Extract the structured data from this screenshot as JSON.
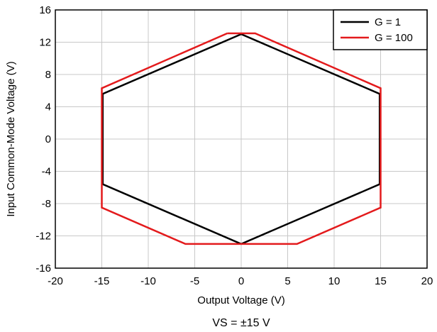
{
  "chart_data": {
    "type": "line",
    "title": "",
    "xlabel": "Output Voltage (V)",
    "ylabel": "Input Common-Mode Voltage (V)",
    "caption": "VS = ±15 V",
    "xlim": [
      -20,
      20
    ],
    "ylim": [
      -16,
      16
    ],
    "xticks": [
      -20,
      -15,
      -10,
      -5,
      0,
      5,
      10,
      15,
      20
    ],
    "yticks": [
      -16,
      -12,
      -8,
      -4,
      0,
      4,
      8,
      12,
      16
    ],
    "grid": true,
    "legend_position": "top-right",
    "series": [
      {
        "name": "G = 1",
        "color": "#000000",
        "points": [
          [
            0,
            13
          ],
          [
            14.9,
            5.6
          ],
          [
            14.9,
            -5.6
          ],
          [
            0,
            -13
          ],
          [
            -14.9,
            -5.6
          ],
          [
            -14.9,
            5.6
          ],
          [
            0,
            13
          ]
        ]
      },
      {
        "name": "G = 100",
        "color": "#e31a1c",
        "points": [
          [
            -1.5,
            13.1
          ],
          [
            1.5,
            13.1
          ],
          [
            15,
            6.3
          ],
          [
            15,
            -8.5
          ],
          [
            6,
            -13
          ],
          [
            -6,
            -13
          ],
          [
            -15,
            -8.5
          ],
          [
            -15,
            6.3
          ],
          [
            -1.5,
            13.1
          ]
        ]
      }
    ]
  }
}
